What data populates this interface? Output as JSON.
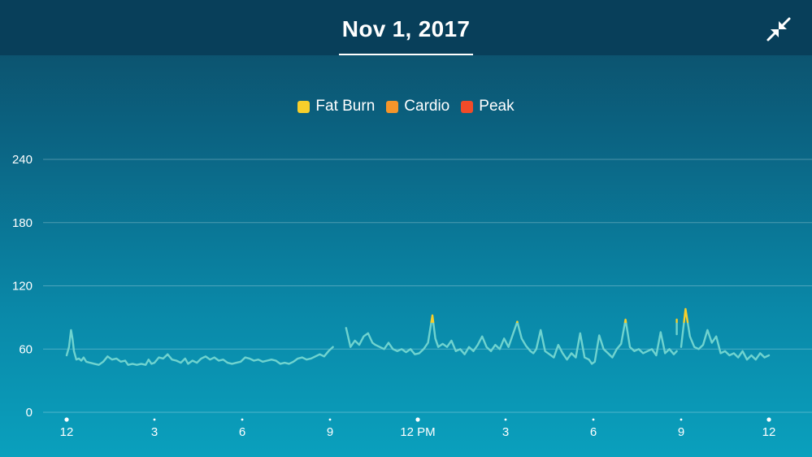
{
  "header": {
    "title": "Nov 1, 2017",
    "collapse_icon": "collapse-arrows-icon"
  },
  "colors": {
    "header_bg": "#083f5a",
    "resting_line": "#6fd3cf",
    "fat_burn": "#f7cf2b",
    "cardio": "#f5952a",
    "peak": "#f24b28"
  },
  "legend": [
    {
      "label": "Fat Burn",
      "color": "#f7cf2b"
    },
    {
      "label": "Cardio",
      "color": "#f5952a"
    },
    {
      "label": "Peak",
      "color": "#f24b28"
    }
  ],
  "chart_data": {
    "type": "line",
    "title": "",
    "xlabel": "",
    "ylabel": "",
    "ylim": [
      0,
      240
    ],
    "yticks": [
      0,
      60,
      120,
      180,
      240
    ],
    "x_unit": "hours since midnight",
    "xlim": [
      0,
      24
    ],
    "xticks": [
      {
        "value": 0,
        "label": "12",
        "major": true
      },
      {
        "value": 3,
        "label": "3",
        "major": false
      },
      {
        "value": 6,
        "label": "6",
        "major": false
      },
      {
        "value": 9,
        "label": "9",
        "major": false
      },
      {
        "value": 12,
        "label": "12 PM",
        "major": true
      },
      {
        "value": 15,
        "label": "3",
        "major": false
      },
      {
        "value": 18,
        "label": "6",
        "major": false
      },
      {
        "value": 21,
        "label": "9",
        "major": false
      },
      {
        "value": 24,
        "label": "12",
        "major": true
      }
    ],
    "fat_burn_threshold": 85,
    "grid": true,
    "legend_position": "top",
    "series": [
      {
        "segments": [
          [
            [
              0.0,
              54
            ],
            [
              0.08,
              62
            ],
            [
              0.15,
              78
            ],
            [
              0.2,
              70
            ],
            [
              0.25,
              58
            ],
            [
              0.33,
              50
            ],
            [
              0.42,
              51
            ],
            [
              0.5,
              49
            ],
            [
              0.58,
              52
            ],
            [
              0.67,
              48
            ],
            [
              0.8,
              47
            ],
            [
              0.95,
              46
            ],
            [
              1.1,
              45
            ],
            [
              1.25,
              48
            ],
            [
              1.4,
              53
            ],
            [
              1.55,
              50
            ],
            [
              1.7,
              51
            ],
            [
              1.85,
              48
            ],
            [
              2.0,
              49
            ],
            [
              2.1,
              45
            ],
            [
              2.25,
              46
            ],
            [
              2.4,
              45
            ],
            [
              2.55,
              46
            ],
            [
              2.7,
              45
            ],
            [
              2.8,
              50
            ],
            [
              2.9,
              46
            ],
            [
              3.0,
              47
            ],
            [
              3.15,
              52
            ],
            [
              3.3,
              51
            ],
            [
              3.45,
              55
            ],
            [
              3.6,
              50
            ],
            [
              3.75,
              49
            ],
            [
              3.9,
              47
            ],
            [
              4.05,
              51
            ],
            [
              4.15,
              46
            ],
            [
              4.3,
              49
            ],
            [
              4.45,
              47
            ],
            [
              4.6,
              51
            ],
            [
              4.75,
              53
            ],
            [
              4.9,
              50
            ],
            [
              5.05,
              52
            ],
            [
              5.2,
              49
            ],
            [
              5.35,
              50
            ],
            [
              5.5,
              47
            ],
            [
              5.65,
              46
            ],
            [
              5.8,
              47
            ],
            [
              5.95,
              48
            ],
            [
              6.1,
              52
            ],
            [
              6.25,
              51
            ],
            [
              6.4,
              49
            ],
            [
              6.55,
              50
            ],
            [
              6.7,
              48
            ],
            [
              6.85,
              49
            ],
            [
              7.0,
              50
            ],
            [
              7.15,
              49
            ],
            [
              7.3,
              46
            ],
            [
              7.45,
              47
            ],
            [
              7.6,
              46
            ],
            [
              7.75,
              48
            ],
            [
              7.9,
              51
            ],
            [
              8.05,
              52
            ],
            [
              8.2,
              50
            ],
            [
              8.35,
              51
            ],
            [
              8.5,
              53
            ],
            [
              8.65,
              55
            ],
            [
              8.8,
              53
            ],
            [
              8.95,
              58
            ],
            [
              9.1,
              62
            ]
          ],
          [
            [
              9.55,
              80
            ],
            [
              9.7,
              62
            ],
            [
              9.85,
              68
            ],
            [
              10.0,
              64
            ],
            [
              10.15,
              72
            ],
            [
              10.3,
              75
            ],
            [
              10.45,
              66
            ],
            [
              10.55,
              64
            ],
            [
              10.7,
              62
            ],
            [
              10.85,
              60
            ],
            [
              11.0,
              66
            ],
            [
              11.15,
              60
            ],
            [
              11.3,
              58
            ],
            [
              11.45,
              60
            ],
            [
              11.6,
              57
            ],
            [
              11.75,
              60
            ],
            [
              11.9,
              55
            ],
            [
              12.05,
              56
            ],
            [
              12.2,
              60
            ],
            [
              12.35,
              66
            ],
            [
              12.5,
              92
            ],
            [
              12.6,
              70
            ],
            [
              12.7,
              62
            ],
            [
              12.85,
              65
            ],
            [
              13.0,
              62
            ],
            [
              13.15,
              68
            ],
            [
              13.3,
              58
            ],
            [
              13.45,
              60
            ],
            [
              13.6,
              55
            ],
            [
              13.75,
              62
            ],
            [
              13.9,
              58
            ],
            [
              14.05,
              64
            ],
            [
              14.2,
              72
            ],
            [
              14.35,
              62
            ],
            [
              14.5,
              58
            ],
            [
              14.65,
              64
            ],
            [
              14.8,
              60
            ],
            [
              14.95,
              70
            ],
            [
              15.1,
              62
            ],
            [
              15.25,
              74
            ],
            [
              15.4,
              86
            ],
            [
              15.55,
              70
            ],
            [
              15.7,
              63
            ],
            [
              15.85,
              58
            ],
            [
              15.95,
              56
            ],
            [
              16.05,
              60
            ],
            [
              16.2,
              78
            ],
            [
              16.35,
              58
            ],
            [
              16.5,
              55
            ],
            [
              16.65,
              52
            ],
            [
              16.8,
              64
            ],
            [
              16.95,
              56
            ],
            [
              17.1,
              50
            ],
            [
              17.25,
              56
            ],
            [
              17.4,
              52
            ],
            [
              17.55,
              75
            ],
            [
              17.7,
              52
            ],
            [
              17.85,
              50
            ],
            [
              17.95,
              46
            ],
            [
              18.05,
              48
            ],
            [
              18.2,
              73
            ],
            [
              18.35,
              60
            ],
            [
              18.5,
              56
            ],
            [
              18.65,
              52
            ],
            [
              18.8,
              60
            ],
            [
              18.95,
              65
            ],
            [
              19.1,
              88
            ],
            [
              19.25,
              62
            ],
            [
              19.4,
              58
            ],
            [
              19.55,
              60
            ],
            [
              19.7,
              56
            ],
            [
              19.85,
              58
            ],
            [
              20.0,
              60
            ],
            [
              20.15,
              54
            ],
            [
              20.3,
              76
            ],
            [
              20.45,
              56
            ],
            [
              20.6,
              60
            ],
            [
              20.75,
              55
            ],
            [
              20.85,
              58
            ]
          ],
          [
            [
              20.85,
              88
            ]
          ],
          [
            [
              21.0,
              62
            ],
            [
              21.15,
              98
            ],
            [
              21.3,
              72
            ],
            [
              21.45,
              62
            ],
            [
              21.6,
              60
            ],
            [
              21.75,
              64
            ],
            [
              21.9,
              78
            ],
            [
              22.05,
              66
            ],
            [
              22.2,
              72
            ],
            [
              22.35,
              56
            ],
            [
              22.5,
              58
            ],
            [
              22.65,
              54
            ],
            [
              22.8,
              56
            ],
            [
              22.95,
              52
            ],
            [
              23.1,
              58
            ],
            [
              23.25,
              50
            ],
            [
              23.4,
              54
            ],
            [
              23.55,
              50
            ],
            [
              23.7,
              56
            ],
            [
              23.85,
              52
            ],
            [
              24.0,
              54
            ]
          ]
        ]
      }
    ]
  }
}
